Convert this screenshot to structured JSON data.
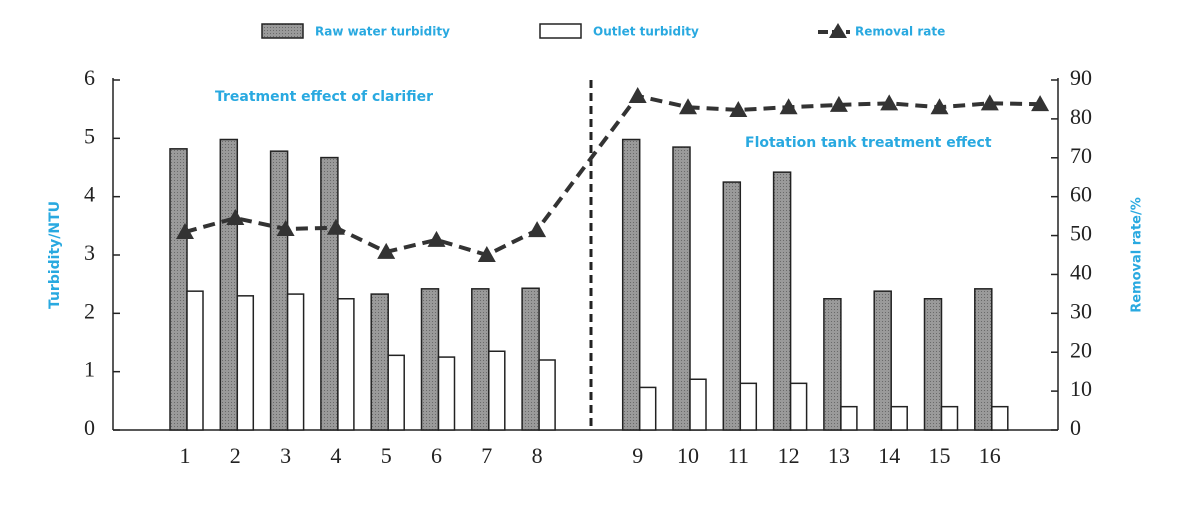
{
  "chart_data": {
    "type": "bar",
    "y_label": "Turbidity/NTU",
    "y2_label": "Removal rate/%",
    "annotations": [
      "Treatment effect of clarifier",
      "Flotation tank treatment effect"
    ],
    "categories": [
      "1",
      "2",
      "3",
      "4",
      "5",
      "6",
      "7",
      "8",
      "9",
      "10",
      "11",
      "12",
      "13",
      "14",
      "15",
      "16",
      null
    ],
    "series": [
      {
        "name": "Raw water turbidity",
        "type": "bar",
        "color": "#999999",
        "values": [
          4.82,
          4.98,
          4.78,
          4.67,
          2.33,
          2.42,
          2.42,
          2.43,
          4.98,
          4.85,
          4.25,
          4.42,
          2.25,
          2.38,
          2.25,
          2.42,
          null
        ]
      },
      {
        "name": "Outlet turbidity",
        "type": "bar",
        "color": "#ffffff",
        "values": [
          2.38,
          2.3,
          2.33,
          2.25,
          1.28,
          1.25,
          1.35,
          1.2,
          0.73,
          0.87,
          0.8,
          0.8,
          0.4,
          0.4,
          0.4,
          0.4,
          null
        ]
      },
      {
        "name": "Removal rate",
        "type": "line",
        "color": "#333333",
        "axis": "y2",
        "values": [
          50.9,
          54.5,
          51.7,
          52.0,
          45.8,
          48.9,
          45.0,
          51.4,
          85.9,
          83.0,
          82.3,
          83.0,
          83.6,
          84.0,
          83.0,
          84.0,
          83.8
        ]
      }
    ],
    "ylim": [
      0,
      6
    ],
    "yticks": [
      0,
      1,
      2,
      3,
      4,
      5,
      6
    ],
    "y2lim": [
      0,
      90
    ],
    "y2ticks": [
      0,
      10,
      20,
      30,
      40,
      50,
      60,
      70,
      80,
      90
    ]
  }
}
